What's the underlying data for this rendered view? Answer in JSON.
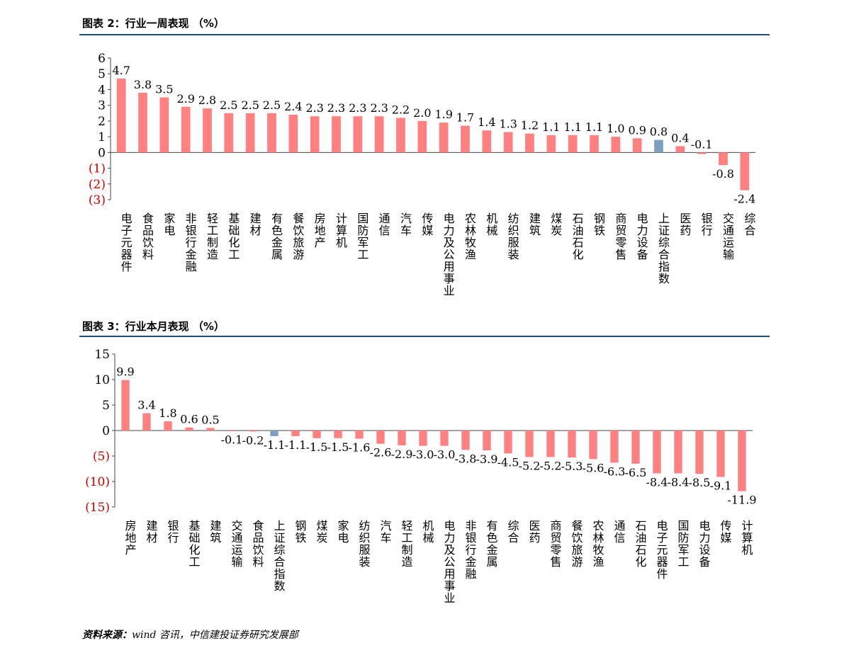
{
  "colors": {
    "positive": "#ff8080",
    "negative": "#ff8080",
    "index": "#7f9fbf",
    "negative_tick": "#cc0000",
    "rule": "#1f4e79"
  },
  "figure_2": {
    "title": "图表 2：行业一周表现 （%）"
  },
  "figure_3": {
    "title": "图表 3：行业本月表现 （%）"
  },
  "source": {
    "label": "资料来源：",
    "text": "wind 咨讯，中信建投证券研究发展部"
  },
  "chart_data": [
    {
      "type": "bar",
      "categories": [
        "电子元器件",
        "食品饮料",
        "家电",
        "非银行金融",
        "轻工制造",
        "基础化工",
        "建材",
        "有色金属",
        "餐饮旅游",
        "房地产",
        "计算机",
        "国防军工",
        "通信",
        "汽车",
        "传媒",
        "电力及公用事业",
        "农林牧渔",
        "机械",
        "纺织服装",
        "建筑",
        "煤炭",
        "石油石化",
        "钢铁",
        "商贸零售",
        "电力设备",
        "上证综合指数",
        "医药",
        "银行",
        "交通运输",
        "综合"
      ],
      "values": [
        4.7,
        3.8,
        3.5,
        2.9,
        2.8,
        2.5,
        2.5,
        2.5,
        2.4,
        2.3,
        2.3,
        2.3,
        2.3,
        2.2,
        2.0,
        1.9,
        1.7,
        1.4,
        1.3,
        1.2,
        1.1,
        1.1,
        1.1,
        1.0,
        0.9,
        0.8,
        0.4,
        -0.1,
        -0.8,
        -2.4
      ],
      "value_labels": [
        "4.7",
        "3.8",
        "3.5",
        "2.9",
        "2.8",
        "2.5",
        "2.5",
        "2.5",
        "2.4",
        "2.3",
        "2.3",
        "2.3",
        "2.3",
        "2.2",
        "2.0",
        "1.9",
        "1.7",
        "1.4",
        "1.3",
        "1.2",
        "1.1",
        "1.1",
        "1.1",
        "1.0",
        "0.9",
        "0.8",
        "0.4",
        "-0.1",
        "-0.8",
        "-2.4"
      ],
      "highlight": "上证综合指数",
      "y_ticks": [
        6,
        5,
        4,
        3,
        2,
        1,
        0,
        -1,
        -2,
        -3
      ],
      "y_tick_labels": [
        "6",
        "5",
        "4",
        "3",
        "2",
        "1",
        "0",
        "(1)",
        "(2)",
        "(3)"
      ],
      "ylim": [
        -3,
        6
      ],
      "grid": false,
      "legend": "none"
    },
    {
      "type": "bar",
      "categories": [
        "房地产",
        "建材",
        "银行",
        "基础化工",
        "建筑",
        "交通运输",
        "食品饮料",
        "上证综合指数",
        "钢铁",
        "煤炭",
        "家电",
        "纺织服装",
        "汽车",
        "轻工制造",
        "机械",
        "电力及公用事业",
        "非银行金融",
        "有色金属",
        "综合",
        "医药",
        "商贸零售",
        "餐饮旅游",
        "农林牧渔",
        "通信",
        "石油石化",
        "电子元器件",
        "国防军工",
        "电力设备",
        "传媒",
        "计算机"
      ],
      "values": [
        9.9,
        3.4,
        1.8,
        0.6,
        0.5,
        -0.1,
        -0.2,
        -1.1,
        -1.1,
        -1.5,
        -1.5,
        -1.6,
        -2.6,
        -2.9,
        -3.0,
        -3.0,
        -3.8,
        -3.9,
        -4.5,
        -5.2,
        -5.2,
        -5.3,
        -5.6,
        -6.3,
        -6.5,
        -8.4,
        -8.4,
        -8.5,
        -9.1,
        -11.9
      ],
      "value_labels": [
        "9.9",
        "3.4",
        "1.8",
        "0.6",
        "0.5",
        "-0.1",
        "-0.2",
        "-1.1",
        "-1.1",
        "-1.5",
        "-1.5",
        "-1.6",
        "-2.6",
        "-2.9",
        "-3.0",
        "-3.0",
        "-3.8",
        "-3.9",
        "-4.5",
        "-5.2",
        "-5.2",
        "-5.3",
        "-5.6",
        "-6.3",
        "-6.5",
        "-8.4",
        "-8.4",
        "-8.5",
        "-9.1",
        "-11.9"
      ],
      "highlight": "上证综合指数",
      "y_ticks": [
        15,
        10,
        5,
        0,
        -5,
        -10,
        -15
      ],
      "y_tick_labels": [
        "15",
        "10",
        "5",
        "0",
        "(5)",
        "(10)",
        "(15)"
      ],
      "ylim": [
        -15,
        15
      ],
      "grid": false,
      "legend": "none"
    }
  ]
}
